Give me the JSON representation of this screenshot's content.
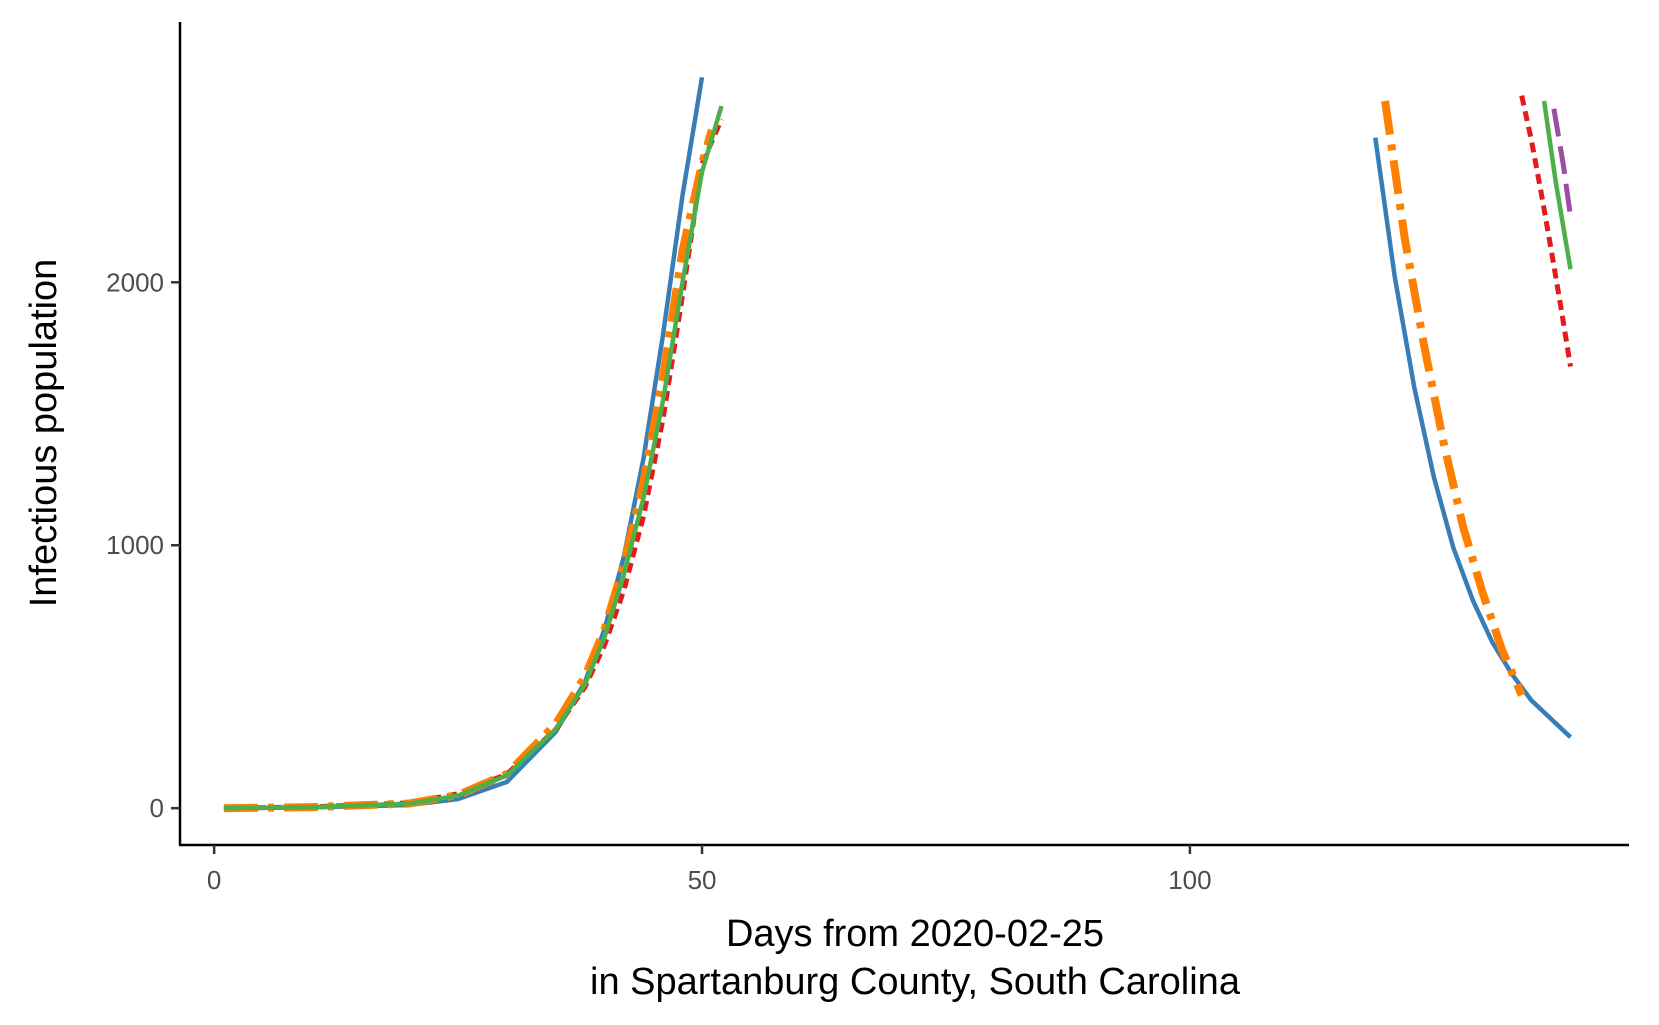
{
  "chart_data": {
    "type": "line",
    "title": "",
    "xlabel_line1": "Days from 2020-02-25",
    "xlabel_line2": "in Spartanburg County, South Carolina",
    "ylabel": "Infectious population",
    "xlim": [
      -3.5,
      145
    ],
    "ylim": [
      -140,
      2990
    ],
    "x_ticks": [
      0,
      50,
      100
    ],
    "x_tick_labels": [
      "0",
      "50",
      "100"
    ],
    "y_ticks": [
      0,
      1000,
      2000
    ],
    "y_tick_labels": [
      "0",
      "1000",
      "2000"
    ],
    "grid": false,
    "legend": "none",
    "series": [
      {
        "color": "#377eb8",
        "dash": "",
        "width": 4.5,
        "segments": [
          {
            "x": [
              1,
              10,
              20,
              25,
              30,
              35,
              38,
              40,
              42,
              44,
              46,
              48,
              50
            ],
            "y": [
              0,
              3,
              12,
              35,
              100,
              290,
              480,
              680,
              960,
              1330,
              1800,
              2330,
              2780
            ]
          },
          {
            "x": [
              119,
              121,
              123,
              125,
              127,
              129,
              131,
              133,
              135,
              137,
              139
            ],
            "y": [
              2550,
              2020,
              1600,
              1260,
              990,
              790,
              630,
              510,
              410,
              340,
              270
            ]
          }
        ]
      },
      {
        "color": "#e41a1c",
        "dash": "10 6",
        "width": 5,
        "segments": [
          {
            "x": [
              1,
              10,
              20,
              25,
              30,
              35,
              38,
              40,
              42,
              44,
              46,
              48,
              50,
              52
            ],
            "y": [
              0,
              5,
              20,
              55,
              130,
              300,
              460,
              620,
              830,
              1110,
              1480,
              1950,
              2450,
              2620
            ]
          },
          {
            "x": [
              134,
              135,
              136,
              137,
              138,
              139
            ],
            "y": [
              2710,
              2540,
              2340,
              2130,
              1910,
              1680
            ]
          }
        ]
      },
      {
        "color": "#ff7f00",
        "dash": "34 10 6 10",
        "width": 8,
        "segments": [
          {
            "x": [
              1,
              10,
              20,
              25,
              30,
              35,
              38,
              40,
              42,
              44,
              46,
              48,
              50,
              51
            ],
            "y": [
              0,
              4,
              18,
              50,
              130,
              320,
              500,
              680,
              930,
              1240,
              1640,
              2120,
              2450,
              2580
            ]
          },
          {
            "x": [
              120,
              122,
              124,
              126,
              128,
              130,
              132,
              134
            ],
            "y": [
              2690,
              2170,
              1760,
              1390,
              1070,
              820,
              600,
              430
            ]
          }
        ]
      },
      {
        "color": "#4daf4a",
        "dash": "",
        "width": 4.5,
        "segments": [
          {
            "x": [
              1,
              10,
              20,
              25,
              30,
              35,
              38,
              40,
              42,
              44,
              46,
              48,
              50,
              52
            ],
            "y": [
              0,
              4,
              17,
              48,
              125,
              300,
              470,
              650,
              890,
              1180,
              1550,
              2000,
              2420,
              2670
            ]
          },
          {
            "x": [
              136.3,
              137.5,
              139
            ],
            "y": [
              2690,
              2380,
              2050
            ]
          }
        ]
      },
      {
        "color": "#984ea3",
        "dash": "28 10",
        "width": 5,
        "segments": [
          {
            "x": [
              137.3,
              138.3,
              139
            ],
            "y": [
              2660,
              2440,
              2250
            ]
          }
        ]
      }
    ]
  }
}
